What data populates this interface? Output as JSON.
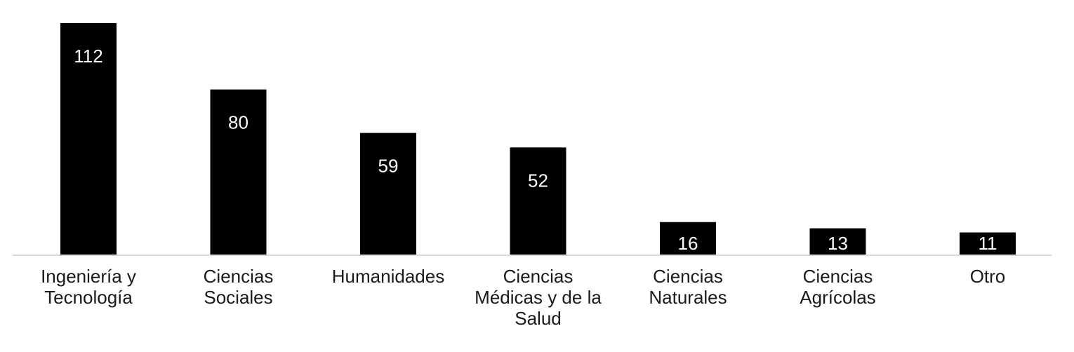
{
  "chart_data": {
    "type": "bar",
    "categories": [
      [
        "Ingeniería y",
        "Tecnología"
      ],
      [
        "Ciencias",
        "Sociales"
      ],
      [
        "Humanidades"
      ],
      [
        "Ciencias",
        "Médicas y de la",
        "Salud"
      ],
      [
        "Ciencias",
        "Naturales"
      ],
      [
        "Ciencias",
        "Agrícolas"
      ],
      [
        "Otro"
      ]
    ],
    "values": [
      112,
      80,
      59,
      52,
      16,
      13,
      11
    ],
    "data_labels": [
      "112",
      "80",
      "59",
      "52",
      "16",
      "13",
      "11"
    ],
    "title": "",
    "xlabel": "",
    "ylabel": "",
    "ylim": [
      0,
      112
    ],
    "grid": false,
    "legend": "none",
    "colors": {
      "bar": "#000000",
      "bar_label": "#ffffff",
      "axis": "#d9d9d9",
      "category_label": "#1a1a1a"
    }
  }
}
